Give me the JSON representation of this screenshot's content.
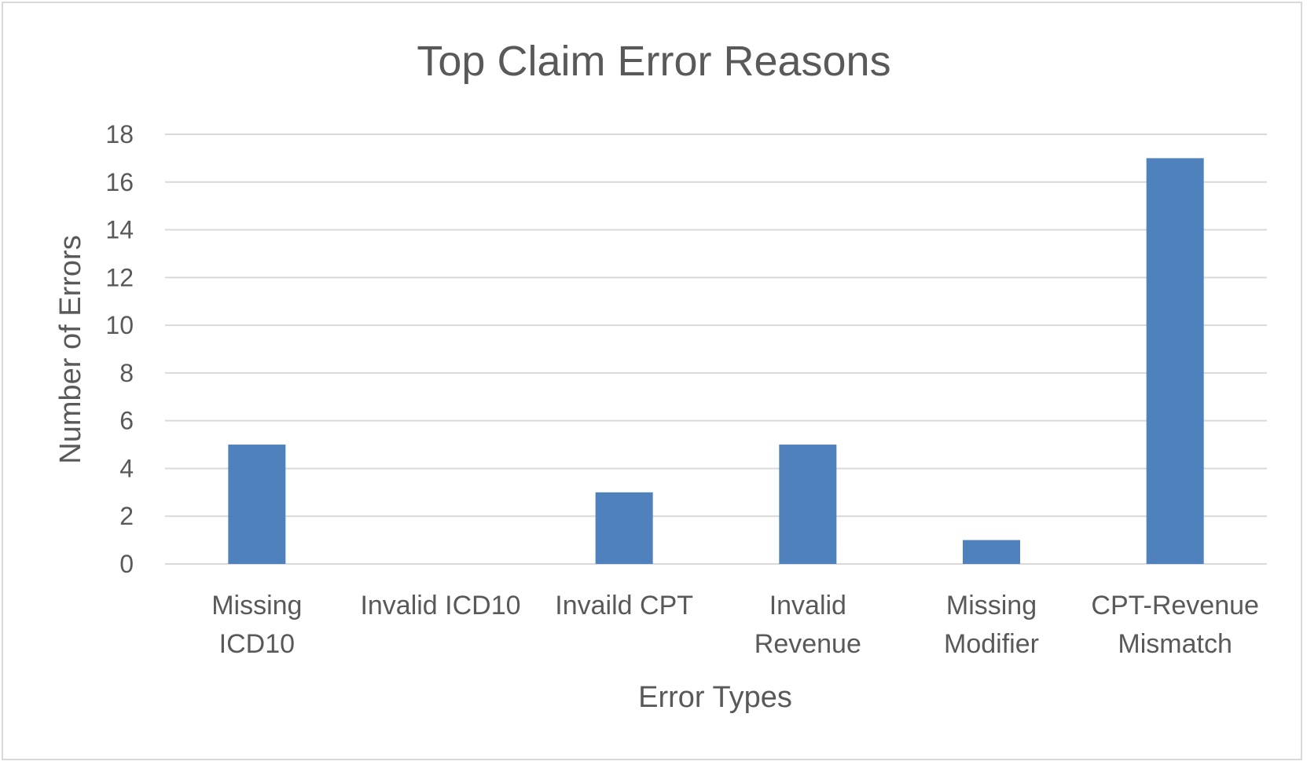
{
  "chart_data": {
    "type": "bar",
    "title": "Top Claim Error Reasons",
    "xlabel": "Error Types",
    "ylabel": "Number of Errors",
    "categories": [
      [
        "Missing",
        "ICD10"
      ],
      [
        "Invalid ICD10"
      ],
      [
        "Invaild CPT"
      ],
      [
        "Invalid",
        "Revenue"
      ],
      [
        "Missing",
        "Modifier"
      ],
      [
        "CPT-Revenue",
        "Mismatch"
      ]
    ],
    "values": [
      5,
      0,
      3,
      5,
      1,
      17
    ],
    "ylim": [
      0,
      18
    ],
    "yticks": [
      0,
      2,
      4,
      6,
      8,
      10,
      12,
      14,
      16,
      18
    ],
    "grid": true,
    "legend": "none",
    "bar_color": "#4f81bd",
    "grid_color": "#d9d9d9",
    "text_color": "#595959"
  }
}
